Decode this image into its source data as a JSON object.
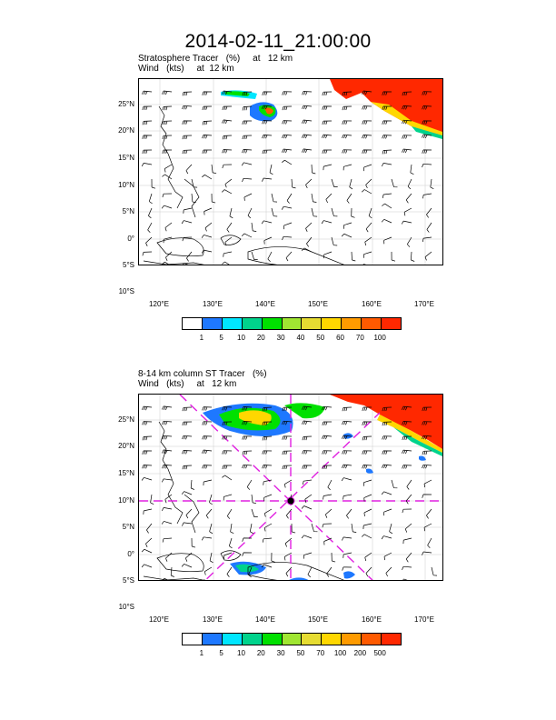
{
  "figure": {
    "title": "2014-02-11_21:00:00"
  },
  "panels": [
    {
      "label_line1": "Stratosphere Tracer   (%)     at   12 km",
      "label_line2": "Wind   (kts)     at  12 km",
      "lat_ticks": [
        "25°N",
        "20°N",
        "15°N",
        "10°N",
        "5°N",
        "0°",
        "5°S",
        "10°S"
      ],
      "lon_ticks": [
        "120°E",
        "130°E",
        "140°E",
        "150°E",
        "160°E",
        "170°E"
      ],
      "colorbar_labels": [
        "1",
        "5",
        "10",
        "20",
        "30",
        "40",
        "50",
        "60",
        "70",
        "100"
      ],
      "colorbar_colors": [
        "#ffffff",
        "#1e78ff",
        "#00e6ff",
        "#00d38c",
        "#00e000",
        "#a0e632",
        "#e6dc32",
        "#ffd700",
        "#ff9b00",
        "#ff5a00",
        "#ff2800"
      ]
    },
    {
      "label_line1": "8-14 km column ST Tracer   (%)",
      "label_line2": "Wind   (kts)     at   12 km",
      "lat_ticks": [
        "25°N",
        "20°N",
        "15°N",
        "10°N",
        "5°N",
        "0°",
        "5°S",
        "10°S"
      ],
      "lon_ticks": [
        "120°E",
        "130°E",
        "140°E",
        "150°E",
        "160°E",
        "170°E"
      ],
      "colorbar_labels": [
        "1",
        "5",
        "10",
        "20",
        "30",
        "50",
        "70",
        "100",
        "200",
        "500"
      ],
      "colorbar_colors": [
        "#ffffff",
        "#1e78ff",
        "#00e6ff",
        "#00d38c",
        "#00e000",
        "#a0e632",
        "#e6dc32",
        "#ffd700",
        "#ff9b00",
        "#ff5a00",
        "#ff2800"
      ]
    }
  ]
}
